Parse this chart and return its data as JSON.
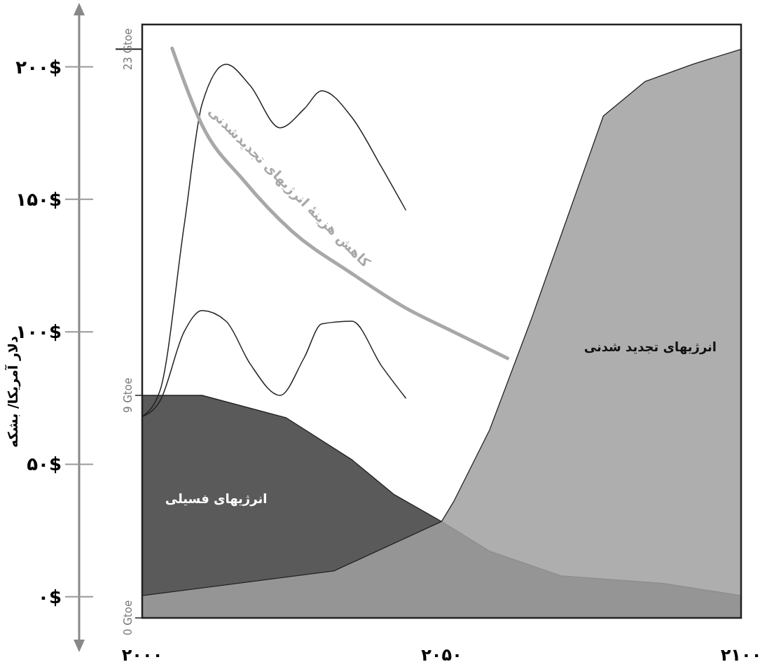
{
  "chart_data": {
    "type": "area",
    "y2label": "دلار آمریکا/ بشکه",
    "xlim": [
      2000,
      2100
    ],
    "xticks": [
      {
        "value": 2000,
        "label": "۲۰۰۰"
      },
      {
        "value": 2050,
        "label": "۲۰۵۰"
      },
      {
        "value": 2100,
        "label": "۲۱۰۰"
      }
    ],
    "ylim": [
      0,
      24
    ],
    "yticks": [
      {
        "value": 0,
        "label": "0 Gtoe"
      },
      {
        "value": 9,
        "label": "9 Gtoe"
      },
      {
        "value": 23,
        "label": "23 Gtoe"
      }
    ],
    "y2lim": [
      -8,
      216
    ],
    "y2ticks": [
      {
        "value": 0,
        "label": "۰$"
      },
      {
        "value": 50,
        "label": "۵۰$"
      },
      {
        "value": 100,
        "label": "۱۰۰$"
      },
      {
        "value": 150,
        "label": "۱۵۰$"
      },
      {
        "value": 200,
        "label": "۲۰۰$"
      }
    ],
    "grid": false,
    "legend": false,
    "series": [
      {
        "name": "انرژیهای فسیلی",
        "color": "#5a5a5a",
        "x": [
          2000,
          2010,
          2024,
          2035,
          2042,
          2050,
          2058,
          2070,
          2087,
          2100
        ],
        "values": [
          9,
          9,
          8.1,
          6.4,
          5.0,
          3.9,
          2.7,
          1.7,
          1.4,
          0.9
        ]
      },
      {
        "name": "انرژیهای تجدید شدنی",
        "color": "#a0a0a0",
        "x": [
          2000,
          2032,
          2050,
          2052,
          2058,
          2065,
          2077,
          2084,
          2092,
          2100
        ],
        "values": [
          0.9,
          1.9,
          3.9,
          4.7,
          7.6,
          12.1,
          20.3,
          21.7,
          22.4,
          23
        ]
      },
      {
        "type": "line",
        "axis": "y2",
        "color": "#222222",
        "x": [
          2000,
          2003,
          2007,
          2010,
          2014,
          2018,
          2023,
          2027,
          2030,
          2035,
          2040,
          2044
        ],
        "values": [
          68,
          78,
          140,
          186,
          201,
          193,
          177,
          184,
          191,
          181,
          162,
          146
        ]
      },
      {
        "type": "line",
        "axis": "y2",
        "color": "#222222",
        "x": [
          2000,
          2003,
          2007,
          2010,
          2014,
          2018,
          2023,
          2027,
          2030,
          2035,
          2040,
          2044
        ],
        "values": [
          68,
          74,
          100,
          108,
          104,
          88,
          76,
          90,
          103,
          104,
          87,
          75
        ]
      },
      {
        "name": "کاهش هزینهٔ انرژیهای تجدیدشدنی",
        "type": "line",
        "axis": "y2",
        "color": "#a8a8a8",
        "x": [
          2005,
          2010,
          2017,
          2025,
          2035,
          2044,
          2052,
          2061
        ],
        "values": [
          207,
          178,
          157,
          138,
          122,
          109,
          100,
          90
        ]
      }
    ]
  }
}
